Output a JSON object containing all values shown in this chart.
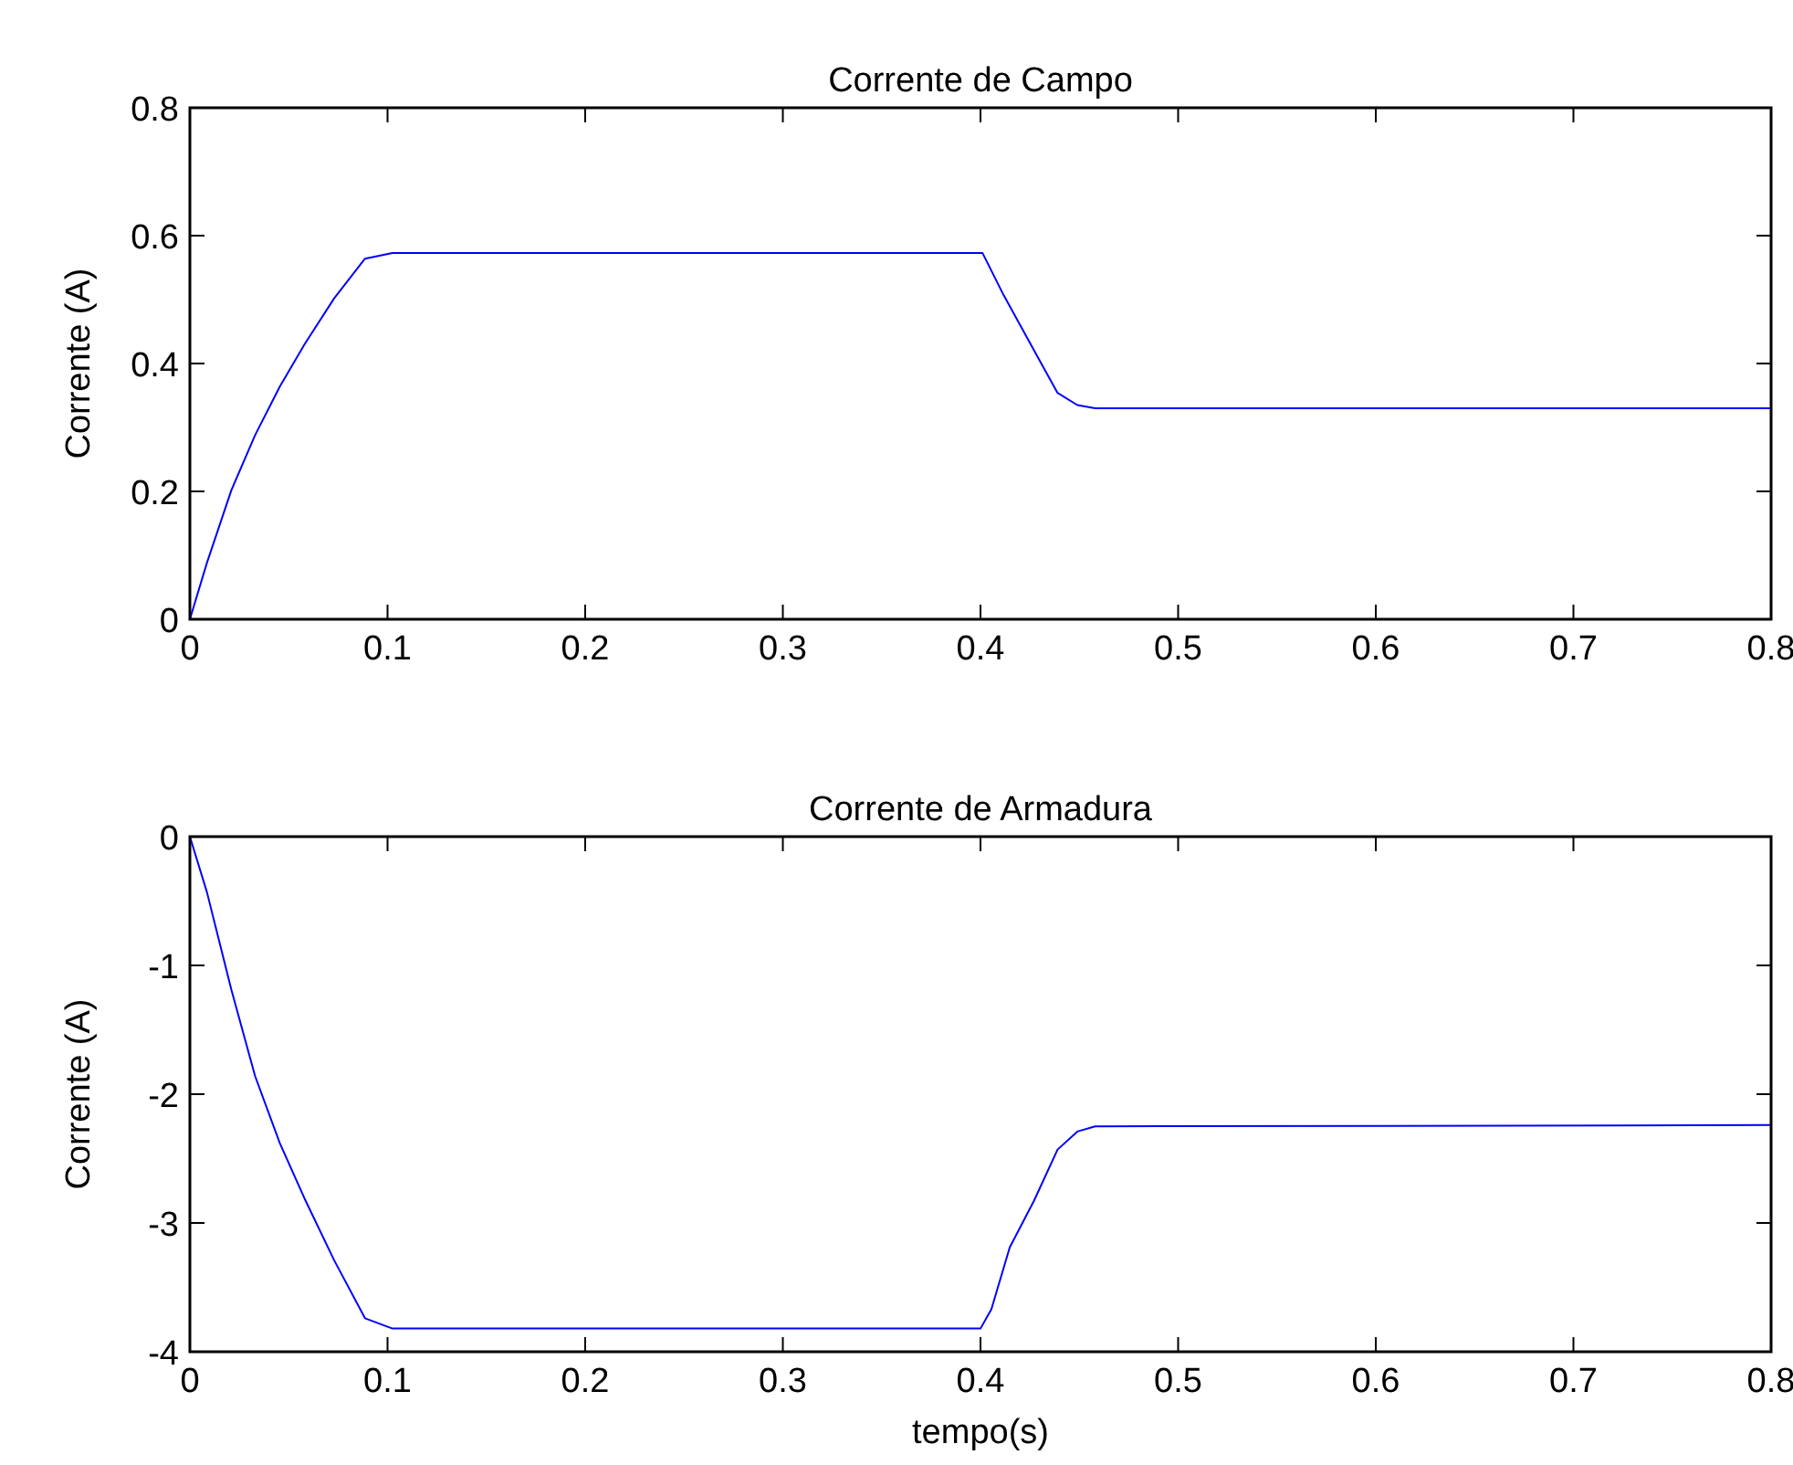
{
  "chart_data": [
    {
      "type": "line",
      "title": "Corrente de Campo",
      "ylabel": "Corrente (A)",
      "xlim": [
        0,
        0.8
      ],
      "xticks": [
        0,
        0.1,
        0.2,
        0.3,
        0.4,
        0.5,
        0.6,
        0.7,
        0.8
      ],
      "ylim": [
        0,
        0.8
      ],
      "yticks": [
        0,
        0.2,
        0.4,
        0.6,
        0.8
      ],
      "grid": false,
      "series": [
        {
          "color": "#0000ff",
          "x": [
            0,
            0.0086,
            0.021,
            0.033,
            0.0455,
            0.058,
            0.073,
            0.0886,
            0.1025,
            0.401,
            0.4117,
            0.427,
            0.439,
            0.449,
            0.458,
            0.8
          ],
          "values": [
            0,
            0.088,
            0.202,
            0.288,
            0.364,
            0.43,
            0.502,
            0.564,
            0.573,
            0.573,
            0.507,
            0.421,
            0.354,
            0.335,
            0.33,
            0.33
          ]
        }
      ]
    },
    {
      "type": "line",
      "title": "Corrente de Armadura",
      "xlabel": "tempo(s)",
      "ylabel": "Corrente (A)",
      "xlim": [
        0,
        0.8
      ],
      "xticks": [
        0,
        0.1,
        0.2,
        0.3,
        0.4,
        0.5,
        0.6,
        0.7,
        0.8
      ],
      "ylim": [
        -4,
        0
      ],
      "yticks": [
        -4,
        -3,
        -2,
        -1,
        0
      ],
      "grid": false,
      "series": [
        {
          "color": "#0000ff",
          "x": [
            0,
            0.0086,
            0.021,
            0.033,
            0.0455,
            0.058,
            0.073,
            0.0886,
            0.1025,
            0.4,
            0.4055,
            0.4148,
            0.427,
            0.439,
            0.449,
            0.458,
            0.8
          ],
          "values": [
            0,
            -0.43,
            -1.19,
            -1.86,
            -2.38,
            -2.81,
            -3.29,
            -3.74,
            -3.82,
            -3.82,
            -3.67,
            -3.19,
            -2.83,
            -2.43,
            -2.29,
            -2.25,
            -2.24
          ]
        }
      ]
    }
  ]
}
